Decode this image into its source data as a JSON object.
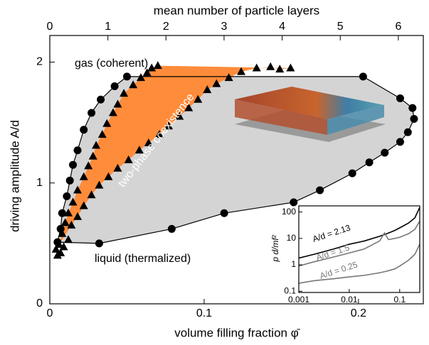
{
  "chart_data": [
    {
      "type": "scatter",
      "x_label": "volume filling fraction φ̄",
      "y_label": "driving amplitude A/d",
      "x2_label": "mean number of particle layers",
      "xlim": [
        0,
        0.242
      ],
      "xticks": [
        0,
        0.1,
        0.2
      ],
      "ylim": [
        0,
        2.22
      ],
      "yticks": [
        0,
        1,
        2
      ],
      "x2lim": [
        0,
        6.43
      ],
      "x2ticks": [
        0,
        1,
        2,
        3,
        4,
        5,
        6
      ],
      "band_color": "#ff8c3a",
      "region_color": "#d4d4d4",
      "series": [
        {
          "marker": "circle",
          "color": "#000000",
          "x": [
            0.005,
            0.007,
            0.008,
            0.011,
            0.013,
            0.015,
            0.018,
            0.022,
            0.027,
            0.033,
            0.042,
            0.05,
            0.203,
            0.227,
            0.235,
            0.236,
            0.232,
            0.227,
            0.217,
            0.207,
            0.196,
            0.175,
            0.158,
            0.113,
            0.079,
            0.032
          ],
          "y": [
            0.51,
            0.62,
            0.75,
            0.89,
            1.02,
            1.15,
            1.27,
            1.44,
            1.58,
            1.69,
            1.8,
            1.88,
            1.88,
            1.7,
            1.62,
            1.53,
            1.42,
            1.34,
            1.25,
            1.17,
            1.08,
            0.94,
            0.84,
            0.75,
            0.62,
            0.5
          ]
        },
        {
          "marker": "triangle",
          "color": "#000000",
          "x": [
            0.006,
            0.008,
            0.01,
            0.012,
            0.015,
            0.018,
            0.022,
            0.025,
            0.028,
            0.03,
            0.034,
            0.037,
            0.041,
            0.044,
            0.048,
            0.054,
            0.059,
            0.063,
            0.066,
            0.07
          ],
          "y": [
            0.49,
            0.58,
            0.67,
            0.75,
            0.84,
            0.94,
            1.05,
            1.14,
            1.22,
            1.31,
            1.4,
            1.49,
            1.58,
            1.65,
            1.74,
            1.81,
            1.87,
            1.91,
            1.95,
            1.97
          ]
        },
        {
          "marker": "triangle",
          "color": "#000000",
          "x": [
            0.014,
            0.018,
            0.022,
            0.027,
            0.032,
            0.038,
            0.044,
            0.051,
            0.058,
            0.064,
            0.071,
            0.077,
            0.084,
            0.09,
            0.096,
            0.102,
            0.108,
            0.116,
            0.124,
            0.134,
            0.143,
            0.149,
            0.156
          ],
          "y": [
            0.65,
            0.72,
            0.81,
            0.9,
            0.98,
            1.05,
            1.12,
            1.19,
            1.27,
            1.33,
            1.4,
            1.47,
            1.55,
            1.62,
            1.69,
            1.77,
            1.82,
            1.87,
            1.92,
            1.95,
            1.96,
            1.94,
            1.95
          ]
        },
        {
          "marker": "triangle",
          "color": "#000000",
          "x": [
            0.004,
            0.005,
            0.007,
            0.009,
            0.012
          ],
          "y": [
            0.45,
            0.4,
            0.42,
            0.47,
            0.53
          ]
        }
      ],
      "annotations": [
        "gas (coherent)",
        "two-phase coexistence",
        "liquid (thermalized)"
      ]
    },
    {
      "type": "line",
      "log_x": true,
      "log_y": true,
      "y_label": "p d/mf²",
      "xlim": [
        0.001,
        0.25
      ],
      "xticks": [
        0.001,
        0.01,
        0.1
      ],
      "ylim": [
        0.09,
        170
      ],
      "yticks": [
        0.1,
        1,
        10,
        100
      ],
      "x": [
        0.001,
        0.002,
        0.005,
        0.01,
        0.02,
        0.04,
        0.05,
        0.06,
        0.08,
        0.1,
        0.15,
        0.2,
        0.25
      ],
      "series": [
        {
          "name": "A/d = 2.13",
          "color": "#000000",
          "values": [
            1.8,
            2.5,
            4,
            6,
            8,
            12,
            14,
            16,
            20,
            25,
            38,
            60,
            150
          ]
        },
        {
          "name": "A/d = 1.5",
          "color": "#777777",
          "values": [
            0.9,
            1.3,
            2,
            2.8,
            4,
            8,
            16,
            9,
            10,
            11,
            15,
            22,
            45
          ]
        },
        {
          "name": "A/d = 0.25",
          "color": "#777777",
          "values": [
            0.2,
            0.25,
            0.3,
            0.35,
            0.4,
            0.5,
            0.55,
            0.6,
            0.7,
            0.9,
            1.5,
            2.5,
            6
          ]
        }
      ]
    }
  ]
}
